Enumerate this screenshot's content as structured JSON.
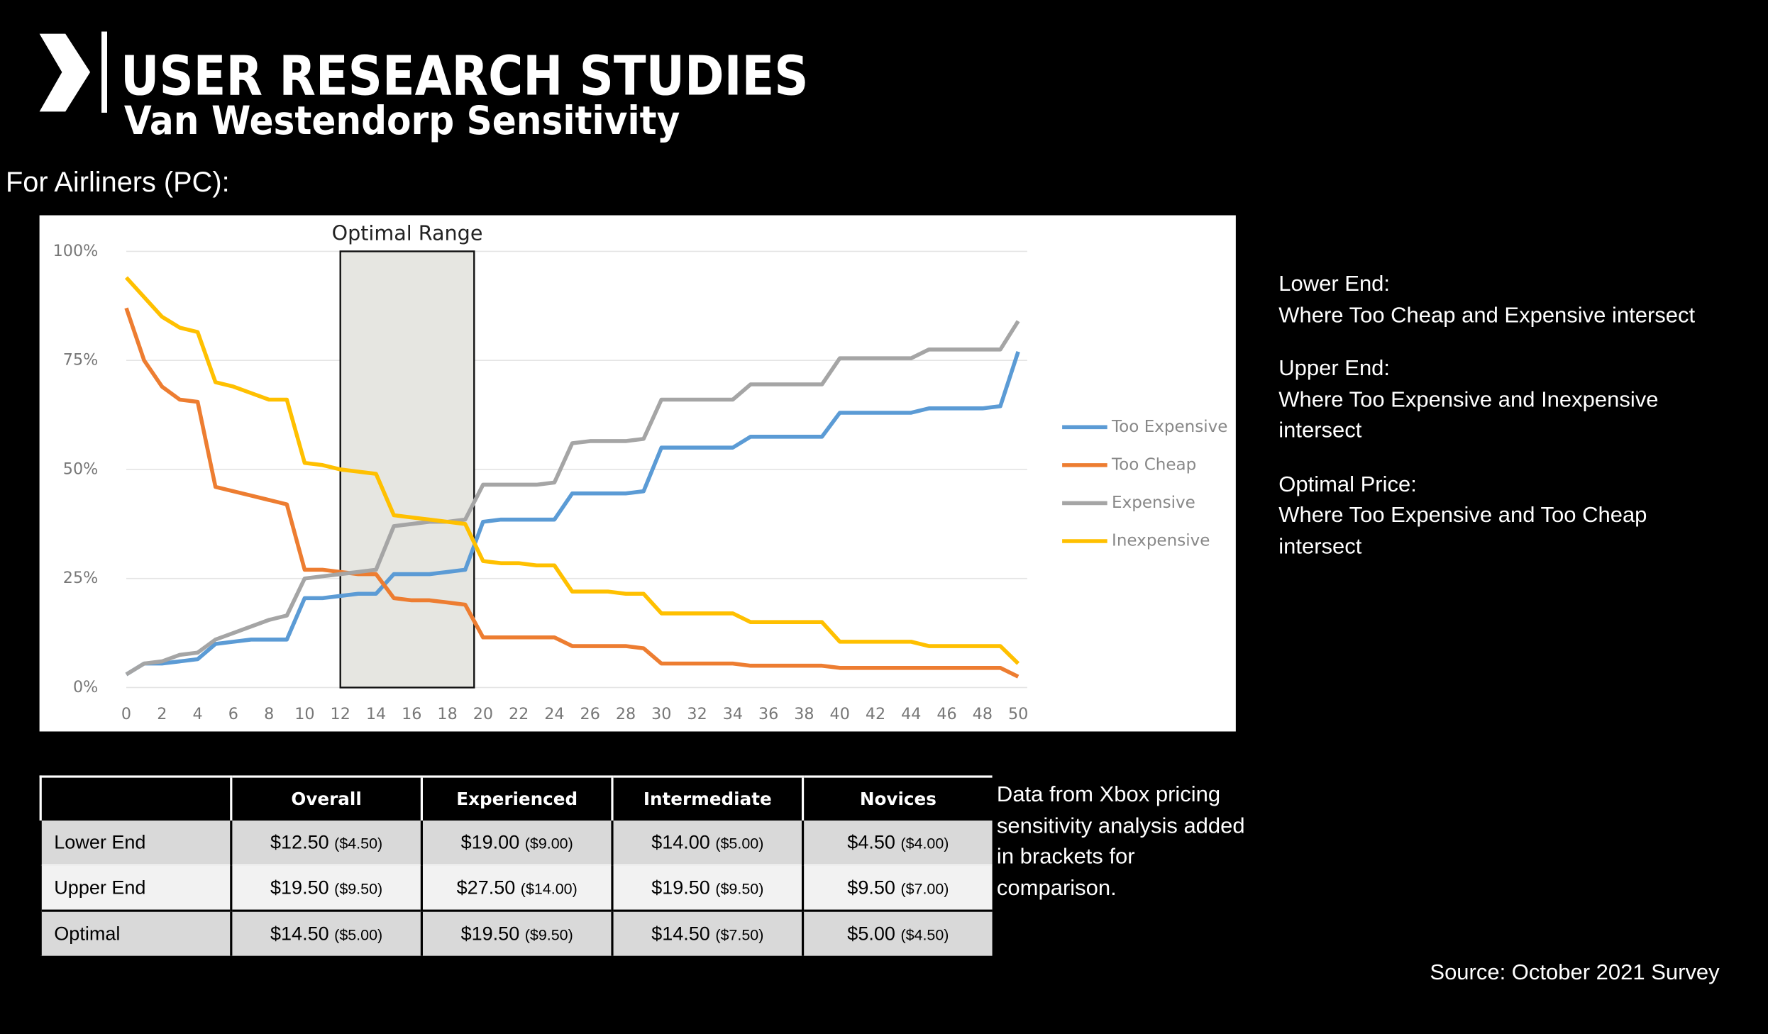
{
  "header": {
    "title": "USER RESEARCH STUDIES",
    "subtitle": "Van Westendorp Sensitivity"
  },
  "section_label": "For Airliners (PC):",
  "chart_data": {
    "type": "line",
    "x": [
      0,
      1,
      2,
      3,
      4,
      5,
      6,
      7,
      8,
      9,
      10,
      11,
      12,
      13,
      14,
      15,
      16,
      17,
      18,
      19,
      20,
      21,
      22,
      23,
      24,
      25,
      26,
      27,
      28,
      29,
      30,
      31,
      32,
      33,
      34,
      35,
      36,
      37,
      38,
      39,
      40,
      41,
      42,
      43,
      44,
      45,
      46,
      47,
      48,
      49,
      50
    ],
    "xlim": [
      0,
      50
    ],
    "xticks": [
      0,
      2,
      4,
      6,
      8,
      10,
      12,
      14,
      16,
      18,
      20,
      22,
      24,
      26,
      28,
      30,
      32,
      34,
      36,
      38,
      40,
      42,
      44,
      46,
      48,
      50
    ],
    "ylim": [
      0,
      100
    ],
    "yticks": [
      {
        "value": 0,
        "label": "0%"
      },
      {
        "value": 25,
        "label": "25%"
      },
      {
        "value": 50,
        "label": "50%"
      },
      {
        "value": 75,
        "label": "75%"
      },
      {
        "value": 100,
        "label": "100%"
      }
    ],
    "grid": true,
    "legend": "right",
    "annotations": [
      {
        "text": "Optimal Range",
        "x_start": 12,
        "x_end": 19.5
      }
    ],
    "series": [
      {
        "name": "Too Expensive",
        "color": "#5b9bd5",
        "values": [
          3,
          5.5,
          5.5,
          6,
          6.5,
          10,
          10.5,
          11,
          11,
          11,
          20.5,
          20.5,
          21,
          21.5,
          21.5,
          26,
          26,
          26,
          26.5,
          27,
          38,
          38.5,
          38.5,
          38.5,
          38.5,
          44.5,
          44.5,
          44.5,
          44.5,
          45,
          55,
          55,
          55,
          55,
          55,
          57.5,
          57.5,
          57.5,
          57.5,
          57.5,
          63,
          63,
          63,
          63,
          63,
          64,
          64,
          64,
          64,
          64.5,
          77
        ]
      },
      {
        "name": "Too Cheap",
        "color": "#ed7d31",
        "values": [
          87,
          75,
          69,
          66,
          65.5,
          46,
          45,
          44,
          43,
          42,
          27,
          27,
          26.5,
          26,
          26,
          20.5,
          20,
          20,
          19.5,
          19,
          11.5,
          11.5,
          11.5,
          11.5,
          11.5,
          9.5,
          9.5,
          9.5,
          9.5,
          9,
          5.5,
          5.5,
          5.5,
          5.5,
          5.5,
          5,
          5,
          5,
          5,
          5,
          4.5,
          4.5,
          4.5,
          4.5,
          4.5,
          4.5,
          4.5,
          4.5,
          4.5,
          4.5,
          2.5
        ]
      },
      {
        "name": "Expensive",
        "color": "#a5a5a5",
        "values": [
          3,
          5.5,
          6,
          7.5,
          8,
          11,
          12.5,
          14,
          15.5,
          16.5,
          25,
          25.5,
          26,
          26.5,
          27,
          37,
          37.5,
          38,
          38,
          38.5,
          46.5,
          46.5,
          46.5,
          46.5,
          47,
          56,
          56.5,
          56.5,
          56.5,
          57,
          66,
          66,
          66,
          66,
          66,
          69.5,
          69.5,
          69.5,
          69.5,
          69.5,
          75.5,
          75.5,
          75.5,
          75.5,
          75.5,
          77.5,
          77.5,
          77.5,
          77.5,
          77.5,
          84
        ]
      },
      {
        "name": "Inexpensive",
        "color": "#ffc000",
        "values": [
          94,
          89.5,
          85,
          82.5,
          81.5,
          70,
          69,
          67.5,
          66,
          66,
          51.5,
          51,
          50,
          49.5,
          49,
          39.5,
          39,
          38.5,
          38,
          37.5,
          29,
          28.5,
          28.5,
          28,
          28,
          22,
          22,
          22,
          21.5,
          21.5,
          17,
          17,
          17,
          17,
          17,
          15,
          15,
          15,
          15,
          15,
          10.5,
          10.5,
          10.5,
          10.5,
          10.5,
          9.5,
          9.5,
          9.5,
          9.5,
          9.5,
          5.5
        ]
      }
    ]
  },
  "notes": [
    {
      "heading": "Lower End:",
      "text": "Where Too Cheap and Expensive intersect"
    },
    {
      "heading": "Upper End:",
      "text": "Where Too Expensive and Inexpensive intersect"
    },
    {
      "heading": "Optimal Price:",
      "text": "Where Too Expensive and Too Cheap intersect"
    }
  ],
  "table": {
    "columns": [
      "Overall",
      "Experienced",
      "Intermediate",
      "Novices"
    ],
    "rows": [
      {
        "label": "Lower End",
        "cells": [
          {
            "price": "$12.50",
            "xbox": "($4.50)"
          },
          {
            "price": "$19.00",
            "xbox": "($9.00)"
          },
          {
            "price": "$14.00",
            "xbox": "($5.00)"
          },
          {
            "price": "$4.50",
            "xbox": "($4.00)"
          }
        ]
      },
      {
        "label": "Upper End",
        "cells": [
          {
            "price": "$19.50",
            "xbox": "($9.50)"
          },
          {
            "price": "$27.50",
            "xbox": "($14.00)"
          },
          {
            "price": "$19.50",
            "xbox": "($9.50)"
          },
          {
            "price": "$9.50",
            "xbox": "($7.00)"
          }
        ]
      },
      {
        "label": "Optimal",
        "cells": [
          {
            "price": "$14.50",
            "xbox": "($5.00)"
          },
          {
            "price": "$19.50",
            "xbox": "($9.50)"
          },
          {
            "price": "$14.50",
            "xbox": "($7.50)"
          },
          {
            "price": "$5.00",
            "xbox": "($4.50)"
          }
        ]
      }
    ]
  },
  "table_note": "Data from Xbox pricing sensitivity analysis added in brackets for comparison.",
  "source": "Source:  October 2021 Survey"
}
